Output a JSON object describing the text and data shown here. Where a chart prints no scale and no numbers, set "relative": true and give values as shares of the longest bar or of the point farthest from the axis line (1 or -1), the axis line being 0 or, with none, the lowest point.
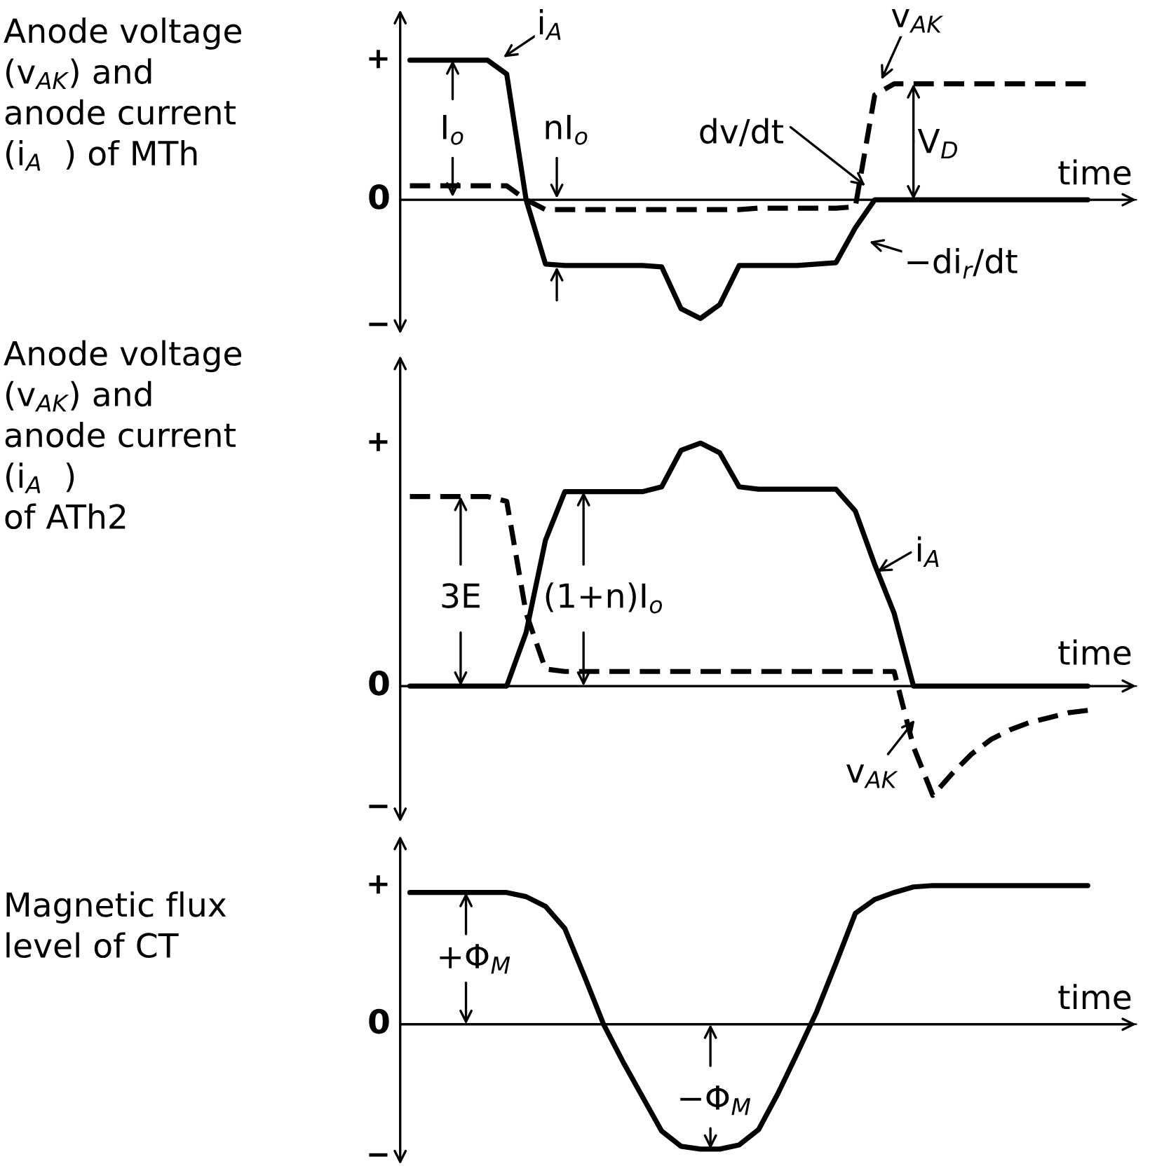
{
  "chart_data": [
    {
      "type": "line",
      "relative": true,
      "title": "Anode voltage\n(v$_{AK}$) and\nanode current\n(i$_{A}$  ) of MTh",
      "xlabel": "time",
      "legend": false,
      "categories": [
        null,
        null,
        null,
        null,
        null,
        null,
        null,
        null,
        null,
        null,
        null,
        null,
        null,
        null,
        null,
        null,
        null,
        null,
        null,
        null,
        null,
        null,
        null,
        null,
        null,
        null,
        null,
        null,
        null,
        null,
        null,
        null,
        null,
        null,
        null,
        null
      ],
      "series": [
        {
          "color": "#000000",
          "line_style": "solid",
          "values": [
            1,
            1,
            1,
            1,
            1,
            0.9,
            0.0,
            -0.46,
            -0.47,
            -0.47,
            -0.47,
            -0.47,
            -0.47,
            -0.48,
            -0.78,
            -0.85,
            -0.75,
            -0.47,
            -0.47,
            -0.47,
            -0.47,
            -0.46,
            -0.45,
            -0.2,
            0,
            0,
            0,
            0,
            0,
            0,
            0,
            0,
            0,
            0,
            0,
            0
          ]
        },
        {
          "color": "#000000",
          "line_style": "dashed",
          "values": [
            0.1,
            0.1,
            0.1,
            0.1,
            0.1,
            0.1,
            0.0,
            -0.07,
            -0.07,
            -0.07,
            -0.07,
            -0.07,
            -0.07,
            -0.07,
            -0.07,
            -0.07,
            -0.07,
            -0.07,
            -0.06,
            -0.06,
            -0.06,
            -0.06,
            -0.06,
            -0.05,
            0.75,
            0.83,
            0.83,
            0.83,
            0.83,
            0.83,
            0.83,
            0.83,
            0.83,
            0.83,
            0.83,
            0.83
          ]
        }
      ],
      "annotations": [
        "+",
        "0",
        "−",
        "i$_{A}$",
        "I$_{o}$",
        "nI$_{o}$",
        "dv/dt",
        "v$_{AK}$",
        "V$_{D}$",
        "−di$_{r}$/dt"
      ]
    },
    {
      "type": "line",
      "relative": true,
      "title": "Anode voltage\n(v$_{AK}$) and\nanode current\n(i$_{A}$  )\nof ATh2",
      "xlabel": "time",
      "legend": false,
      "categories": [
        null,
        null,
        null,
        null,
        null,
        null,
        null,
        null,
        null,
        null,
        null,
        null,
        null,
        null,
        null,
        null,
        null,
        null,
        null,
        null,
        null,
        null,
        null,
        null,
        null,
        null,
        null,
        null,
        null,
        null,
        null,
        null,
        null,
        null,
        null,
        null
      ],
      "series": [
        {
          "color": "#000000",
          "line_style": "solid",
          "values": [
            0,
            0,
            0,
            0,
            0,
            0,
            0.22,
            0.6,
            0.8,
            0.8,
            0.8,
            0.8,
            0.8,
            0.82,
            0.97,
            1.0,
            0.96,
            0.82,
            0.81,
            0.81,
            0.81,
            0.81,
            0.81,
            0.72,
            0.5,
            0.3,
            0,
            0,
            0,
            0,
            0,
            0,
            0,
            0,
            0,
            0
          ]
        },
        {
          "color": "#000000",
          "line_style": "dashed",
          "values": [
            0.78,
            0.78,
            0.78,
            0.78,
            0.78,
            0.76,
            0.3,
            0.07,
            0.06,
            0.06,
            0.06,
            0.06,
            0.06,
            0.06,
            0.06,
            0.06,
            0.06,
            0.06,
            0.06,
            0.06,
            0.06,
            0.06,
            0.06,
            0.06,
            0.06,
            0.06,
            -0.25,
            -0.45,
            -0.36,
            -0.28,
            -0.22,
            -0.18,
            -0.15,
            -0.13,
            -0.11,
            -0.1
          ]
        }
      ],
      "annotations": [
        "+",
        "0",
        "−",
        "3E",
        "(1+n)I$_{o}$",
        "i$_{A}$",
        "v$_{AK}$"
      ]
    },
    {
      "type": "line",
      "relative": true,
      "title": "Magnetic flux\nlevel of CT",
      "xlabel": "time",
      "legend": false,
      "categories": [
        null,
        null,
        null,
        null,
        null,
        null,
        null,
        null,
        null,
        null,
        null,
        null,
        null,
        null,
        null,
        null,
        null,
        null,
        null,
        null,
        null,
        null,
        null,
        null,
        null,
        null,
        null,
        null,
        null,
        null,
        null,
        null,
        null,
        null,
        null,
        null
      ],
      "series": [
        {
          "color": "#000000",
          "line_style": "solid",
          "values": [
            0.95,
            0.95,
            0.95,
            0.95,
            0.95,
            0.95,
            0.92,
            0.85,
            0.69,
            0.35,
            0,
            -0.27,
            -0.52,
            -0.77,
            -0.88,
            -0.9,
            -0.9,
            -0.87,
            -0.76,
            -0.5,
            -0.21,
            0.09,
            0.44,
            0.8,
            0.9,
            0.95,
            0.99,
            1,
            1,
            1,
            1,
            1,
            1,
            1,
            1,
            1
          ]
        }
      ],
      "annotations": [
        "+",
        "0",
        "−",
        "+Φ$_{M}$",
        "−Φ$_{M}$"
      ]
    }
  ]
}
